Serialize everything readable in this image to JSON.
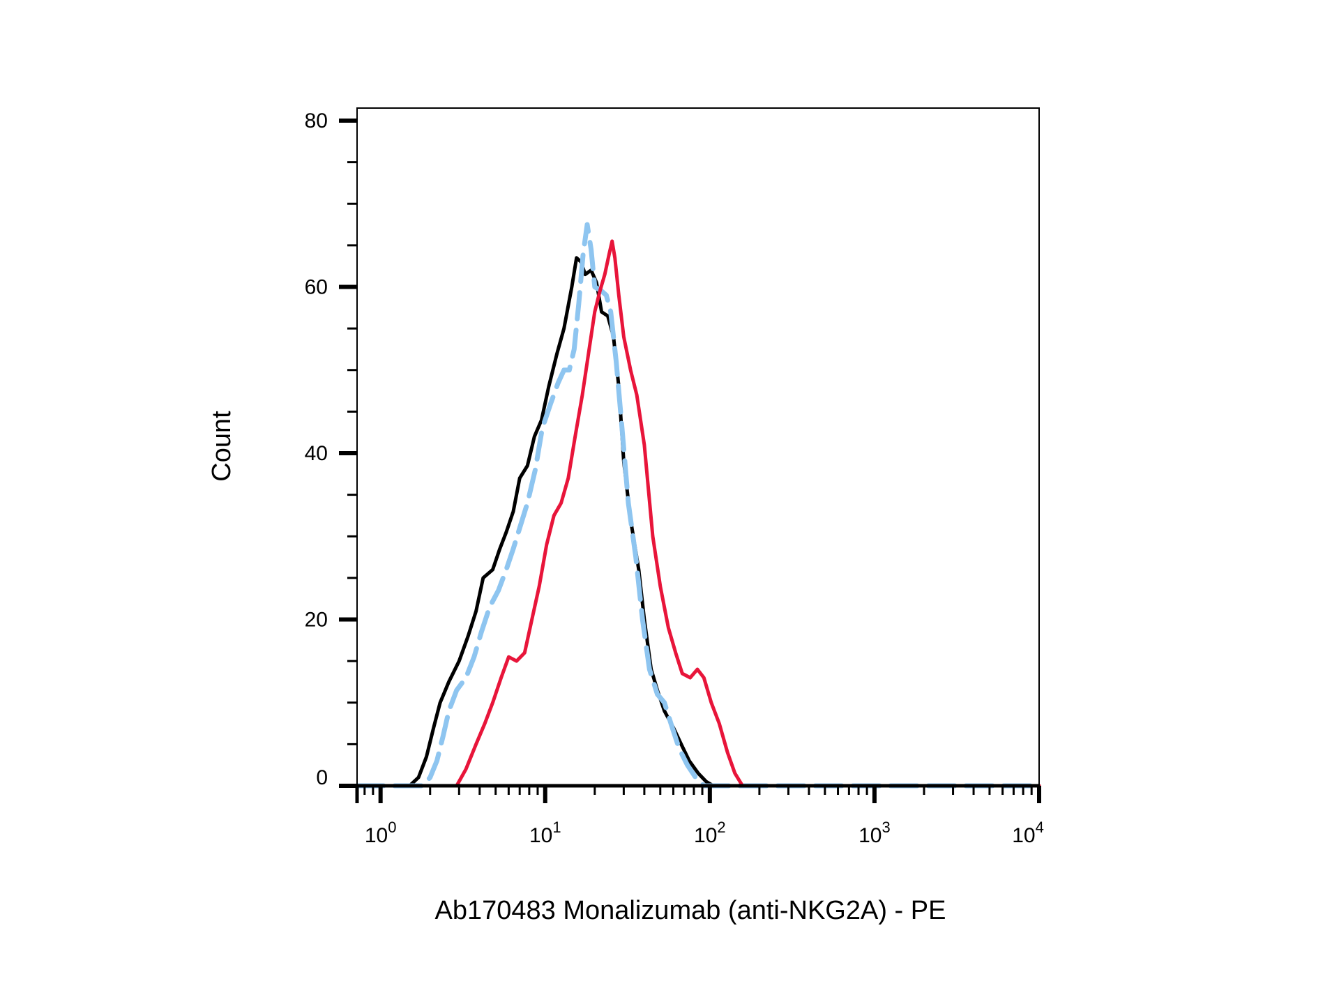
{
  "chart_data": {
    "type": "line",
    "title": "",
    "xlabel": "Ab170483 Monalizumab (anti-NKG2A) - PE",
    "ylabel": "Count",
    "xscale": "log",
    "xlim": [
      0.72,
      10000
    ],
    "ylim": [
      0,
      80
    ],
    "x_ticks": [
      {
        "value": 1,
        "base": "10",
        "exp": "0"
      },
      {
        "value": 10,
        "base": "10",
        "exp": "1"
      },
      {
        "value": 100,
        "base": "10",
        "exp": "2"
      },
      {
        "value": 1000,
        "base": "10",
        "exp": "3"
      },
      {
        "value": 10000,
        "base": "10",
        "exp": "4"
      }
    ],
    "y_ticks": [
      0,
      20,
      40,
      60,
      80
    ],
    "grid": false,
    "legend": "none",
    "series": [
      {
        "color": "#000000",
        "dash": "solid",
        "points": [
          [
            0.72,
            0
          ],
          [
            1.5,
            0
          ],
          [
            1.7,
            1
          ],
          [
            1.9,
            3.5
          ],
          [
            2.1,
            7
          ],
          [
            2.3,
            10
          ],
          [
            2.6,
            12.5
          ],
          [
            3.0,
            15
          ],
          [
            3.4,
            18
          ],
          [
            3.8,
            21
          ],
          [
            4.2,
            25
          ],
          [
            4.8,
            26
          ],
          [
            5.3,
            28.5
          ],
          [
            5.8,
            30.5
          ],
          [
            6.4,
            33
          ],
          [
            7.0,
            37
          ],
          [
            7.8,
            38.5
          ],
          [
            8.6,
            42
          ],
          [
            9.5,
            44
          ],
          [
            10.5,
            48
          ],
          [
            11.8,
            52
          ],
          [
            13.0,
            55
          ],
          [
            14.5,
            60
          ],
          [
            15.5,
            63.5
          ],
          [
            16.5,
            63
          ],
          [
            17.5,
            61.5
          ],
          [
            19.0,
            62
          ],
          [
            20.5,
            60.5
          ],
          [
            22.0,
            57
          ],
          [
            24.0,
            56.5
          ],
          [
            26.0,
            54
          ],
          [
            28.0,
            48
          ],
          [
            30.0,
            39
          ],
          [
            33.0,
            32
          ],
          [
            37.0,
            26
          ],
          [
            40.0,
            20
          ],
          [
            44.0,
            14
          ],
          [
            48.0,
            11.5
          ],
          [
            53.0,
            9
          ],
          [
            60.0,
            7
          ],
          [
            67.0,
            5
          ],
          [
            75.0,
            3
          ],
          [
            85.0,
            1.5
          ],
          [
            95.0,
            0.5
          ],
          [
            105.0,
            0
          ],
          [
            10000,
            0
          ]
        ]
      },
      {
        "color": "#8ec5f0",
        "dash": "dashed",
        "points": [
          [
            0.72,
            0
          ],
          [
            1.8,
            0
          ],
          [
            2.0,
            1
          ],
          [
            2.2,
            3
          ],
          [
            2.4,
            6
          ],
          [
            2.6,
            9
          ],
          [
            2.9,
            11.5
          ],
          [
            3.3,
            13
          ],
          [
            3.7,
            15.5
          ],
          [
            4.1,
            18.5
          ],
          [
            4.6,
            21.5
          ],
          [
            5.2,
            23.5
          ],
          [
            5.8,
            26
          ],
          [
            6.4,
            28.5
          ],
          [
            7.0,
            31
          ],
          [
            7.8,
            34
          ],
          [
            8.7,
            38
          ],
          [
            9.6,
            43
          ],
          [
            10.8,
            46
          ],
          [
            12.0,
            48.5
          ],
          [
            13.0,
            50
          ],
          [
            14.0,
            50
          ],
          [
            15.0,
            52.5
          ],
          [
            16.0,
            58
          ],
          [
            17.0,
            64
          ],
          [
            18.0,
            67.5
          ],
          [
            19.0,
            64.5
          ],
          [
            20.0,
            60
          ],
          [
            22.0,
            59.5
          ],
          [
            23.5,
            59
          ],
          [
            25.0,
            57
          ],
          [
            27.0,
            51
          ],
          [
            29.0,
            44
          ],
          [
            32.0,
            34
          ],
          [
            35.5,
            27.5
          ],
          [
            39.0,
            20
          ],
          [
            43.0,
            14
          ],
          [
            48.0,
            11
          ],
          [
            53.0,
            10
          ],
          [
            58.0,
            7.5
          ],
          [
            65.0,
            4.5
          ],
          [
            73.0,
            2.5
          ],
          [
            82.0,
            1
          ],
          [
            92.0,
            0
          ],
          [
            10000,
            0
          ]
        ]
      },
      {
        "color": "#e8153a",
        "dash": "solid",
        "points": [
          [
            0.72,
            0
          ],
          [
            2.9,
            0
          ],
          [
            3.3,
            2
          ],
          [
            3.8,
            5
          ],
          [
            4.3,
            7.5
          ],
          [
            4.8,
            10
          ],
          [
            5.4,
            13
          ],
          [
            6.0,
            15.5
          ],
          [
            6.7,
            15
          ],
          [
            7.5,
            16
          ],
          [
            8.3,
            20
          ],
          [
            9.2,
            24
          ],
          [
            10.2,
            29
          ],
          [
            11.3,
            32.5
          ],
          [
            12.5,
            34
          ],
          [
            13.8,
            37
          ],
          [
            15.2,
            42
          ],
          [
            16.8,
            47
          ],
          [
            18.5,
            52.5
          ],
          [
            20.0,
            57
          ],
          [
            21.5,
            59.5
          ],
          [
            23.0,
            61.5
          ],
          [
            24.5,
            64
          ],
          [
            25.5,
            65.5
          ],
          [
            26.5,
            63.5
          ],
          [
            28.0,
            59
          ],
          [
            30.0,
            54
          ],
          [
            33.0,
            50
          ],
          [
            36.0,
            47
          ],
          [
            40.0,
            41
          ],
          [
            45.0,
            30
          ],
          [
            50.0,
            24
          ],
          [
            56.0,
            19
          ],
          [
            62.0,
            16
          ],
          [
            68.0,
            13.5
          ],
          [
            76.0,
            13
          ],
          [
            84.0,
            14
          ],
          [
            92.0,
            13
          ],
          [
            102.0,
            10
          ],
          [
            114.0,
            7.5
          ],
          [
            128.0,
            4
          ],
          [
            142.0,
            1.5
          ],
          [
            158.0,
            0
          ],
          [
            10000,
            0
          ]
        ]
      }
    ]
  }
}
